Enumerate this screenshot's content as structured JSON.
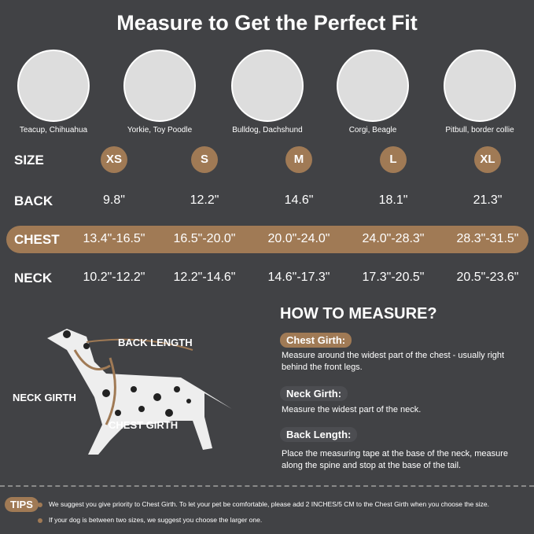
{
  "title": "Measure to Get the Perfect Fit",
  "breeds": [
    "Teacup, Chihuahua",
    "Yorkie, Toy Poodle",
    "Bulldog, Dachshund",
    "Corgi, Beagle",
    "Pitbull, border collie"
  ],
  "table": {
    "size_label": "SIZE",
    "sizes": [
      "XS",
      "S",
      "M",
      "L",
      "XL"
    ],
    "back_label": "BACK",
    "back": [
      "9.8\"",
      "12.2\"",
      "14.6\"",
      "18.1\"",
      "21.3\""
    ],
    "chest_label": "CHEST",
    "chest": [
      "13.4\"-16.5\"",
      "16.5\"-20.0\"",
      "20.0\"-24.0\"",
      "24.0\"-28.3\"",
      "28.3\"-31.5\""
    ],
    "neck_label": "NECK",
    "neck": [
      "10.2\"-12.2\"",
      "12.2\"-14.6\"",
      "14.6\"-17.3\"",
      "17.3\"-20.5\"",
      "20.5\"-23.6\""
    ]
  },
  "diagram": {
    "back_length": "BACK LENGTH",
    "neck_girth": "NECK GIRTH",
    "chest_girth": "CHEST GIRTH"
  },
  "how_to": {
    "title": "HOW TO MEASURE?",
    "items": [
      {
        "label": "Chest Girth:",
        "text": "Measure around the widest part of the chest - usually right behind the front legs."
      },
      {
        "label": "Neck Girth:",
        "text": "Measure the widest part of the neck."
      },
      {
        "label": "Back Length:",
        "text": "Place the measuring tape at the base of the neck, measure along the spine and stop at the base of the tail."
      }
    ]
  },
  "tips": {
    "label": "TIPS",
    "items": [
      "We suggest you give priority to Chest Girth. To let your pet be comfortable, please add 2 INCHES/5 CM to the Chest Girth when you choose the size.",
      "If your dog is between two sizes, we suggest you choose the larger one."
    ]
  },
  "colors": {
    "background": "#414245",
    "accent": "#a07a55"
  }
}
